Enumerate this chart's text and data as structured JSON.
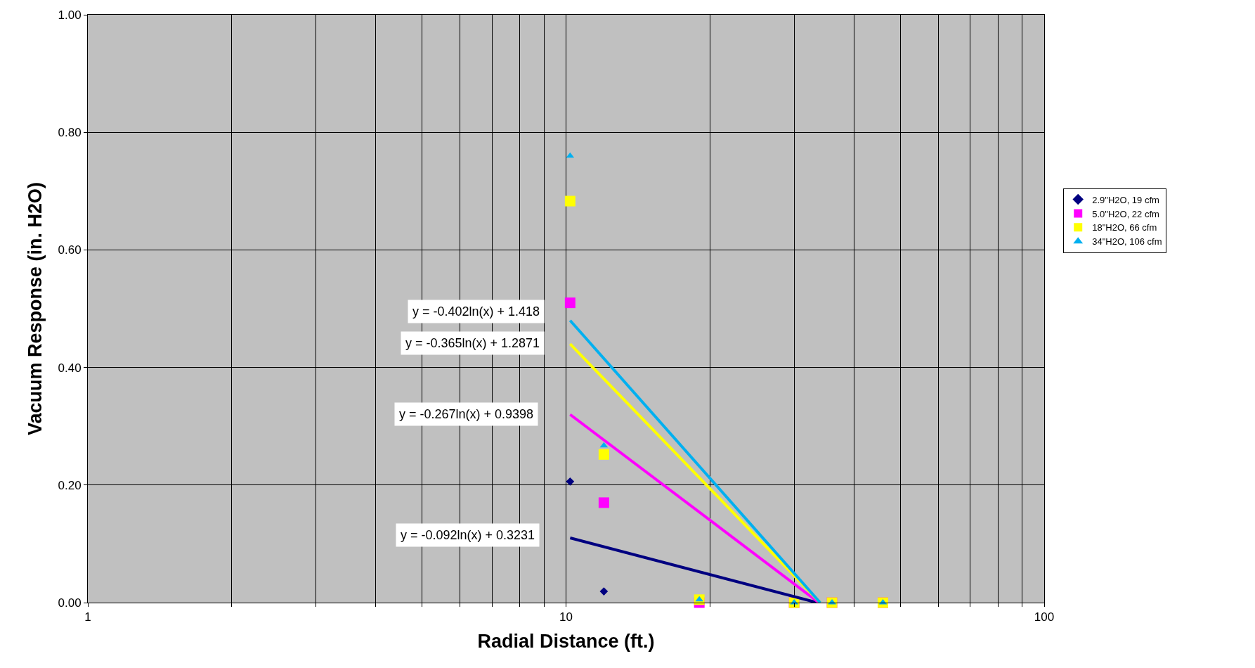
{
  "chart_data": {
    "type": "scatter",
    "xlabel": "Radial Distance (ft.)",
    "ylabel": "Vacuum Response (in. H2O)",
    "log": "x",
    "xlim": [
      1,
      100
    ],
    "ylim": [
      0,
      1.0
    ],
    "xticks": [
      1,
      {
        "value": 2,
        "label": null
      },
      {
        "value": 3,
        "label": null
      },
      {
        "value": 4,
        "label": null
      },
      {
        "value": 5,
        "label": null
      },
      {
        "value": 6,
        "label": null
      },
      {
        "value": 7,
        "label": null
      },
      {
        "value": 8,
        "label": null
      },
      {
        "value": 9,
        "label": null
      },
      10,
      {
        "value": 20,
        "label": null
      },
      {
        "value": 30,
        "label": null
      },
      {
        "value": 40,
        "label": null
      },
      {
        "value": 50,
        "label": null
      },
      {
        "value": 60,
        "label": null
      },
      {
        "value": 70,
        "label": null
      },
      {
        "value": 80,
        "label": null
      },
      {
        "value": 90,
        "label": null
      },
      100
    ],
    "yticks": [
      {
        "value": 0,
        "label": "0.00"
      },
      {
        "value": 0.2,
        "label": "0.20"
      },
      {
        "value": 0.4,
        "label": "0.40"
      },
      {
        "value": 0.6,
        "label": "0.60"
      },
      {
        "value": 0.8,
        "label": "0.80"
      },
      {
        "value": 1.0,
        "label": "1.00"
      }
    ],
    "grid": true,
    "legend": "right",
    "series": [
      {
        "name": "2.9\"H2O, 19 cfm",
        "color": "#000080",
        "marker": "diamond",
        "x": [
          10.2,
          12
        ],
        "values": [
          0.206,
          0.019
        ]
      },
      {
        "name": "5.0\"H2O, 22 cfm",
        "color": "#ff00ff",
        "marker": "square",
        "x": [
          10.2,
          12,
          19,
          30,
          36,
          46
        ],
        "values": [
          0.51,
          0.17,
          0,
          0,
          0,
          0
        ]
      },
      {
        "name": "18\"H2O, 66 cfm",
        "color": "#ffff00",
        "marker": "square",
        "x": [
          10.2,
          12,
          19,
          30,
          36,
          46
        ],
        "values": [
          0.683,
          0.252,
          0.005,
          0,
          0,
          0
        ]
      },
      {
        "name": "34\"H2O, 106 cfm",
        "color": "#00b0f0",
        "marker": "triangle",
        "x": [
          10.2,
          12,
          19,
          30,
          36,
          46
        ],
        "values": [
          0.76,
          0.267,
          0.005,
          0,
          0,
          0
        ]
      },
      {
        "type": "line",
        "color": "#000080",
        "marker": "none",
        "x": [
          10.2,
          33.5
        ],
        "values": [
          0.11,
          0
        ]
      },
      {
        "type": "line",
        "color": "#ff00ff",
        "marker": "none",
        "x": [
          10.2,
          33.8
        ],
        "values": [
          0.32,
          0
        ]
      },
      {
        "type": "line",
        "color": "#ffff00",
        "marker": "none",
        "x": [
          10.2,
          34.0
        ],
        "values": [
          0.44,
          0
        ]
      },
      {
        "type": "line",
        "color": "#00b0f0",
        "marker": "none",
        "x": [
          10.2,
          34.0
        ],
        "values": [
          0.48,
          0
        ]
      }
    ],
    "annotations": [
      "y = -0.402ln(x) + 1.418",
      "y = -0.365ln(x) + 1.2871",
      "y = -0.267ln(x) + 0.9398",
      "y = -0.092ln(x) + 0.3231"
    ]
  }
}
